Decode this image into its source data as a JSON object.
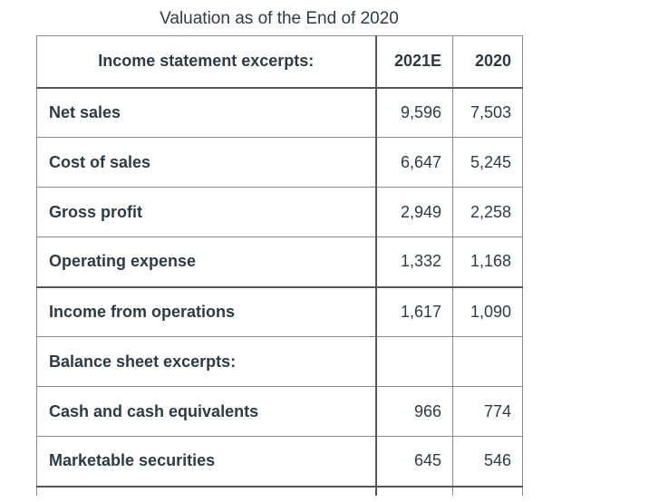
{
  "title": "Valuation as of the End of 2020",
  "table": {
    "headers": [
      "Income statement excerpts:",
      "2021E",
      "2020"
    ],
    "rows": [
      {
        "label": "Net sales",
        "v2021E": "9,596",
        "v2020": "7,503"
      },
      {
        "label": "Cost of sales",
        "v2021E": "6,647",
        "v2020": "5,245"
      },
      {
        "label": "Gross profit",
        "v2021E": "2,949",
        "v2020": "2,258"
      },
      {
        "label": "Operating expense",
        "v2021E": "1,332",
        "v2020": "1,168"
      },
      {
        "label": "Income from operations",
        "v2021E": "1,617",
        "v2020": "1,090"
      },
      {
        "label": "Balance sheet excerpts:",
        "v2021E": "",
        "v2020": ""
      },
      {
        "label": "Cash and cash equivalents",
        "v2021E": "966",
        "v2020": "774"
      },
      {
        "label": "Marketable securities",
        "v2021E": "645",
        "v2020": "546"
      }
    ]
  }
}
